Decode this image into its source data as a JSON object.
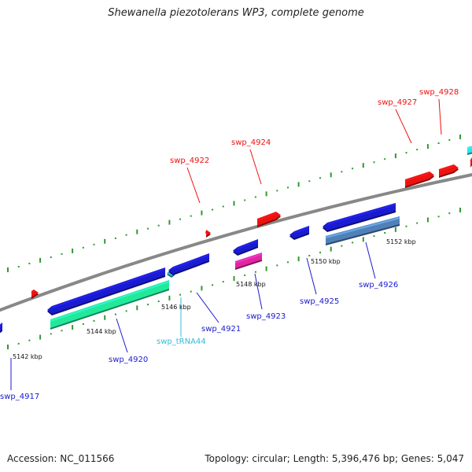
{
  "header": {
    "title": "Shewanella piezotolerans WP3, complete genome"
  },
  "footer": {
    "accession": "Accession: NC_011566",
    "summary": "Topology: circular; Length: 5,396,476 bp; Genes: 5,047"
  },
  "colors": {
    "forward": "#ee1111",
    "reverse": "#1a1ad0",
    "rrna": "#22e89a",
    "trna": "#33bbdd",
    "misc_pink": "#e0259f",
    "misc_steel": "#4f80b8",
    "cyan": "#22e6ee",
    "backbone": "#888888",
    "tick": "#2f9a2f"
  },
  "kbp_labels": [
    "5142 kbp",
    "5144 kbp",
    "5146 kbp",
    "5148 kbp",
    "5150 kbp",
    "5152 kbp"
  ],
  "genes": [
    {
      "id": "swp_4917",
      "label": "swp_4917",
      "strand": "reverse"
    },
    {
      "id": "swp_4920",
      "label": "swp_4920",
      "strand": "reverse"
    },
    {
      "id": "swp_tRNA44",
      "label": "swp_tRNA44",
      "strand": "trna"
    },
    {
      "id": "swp_4921",
      "label": "swp_4921",
      "strand": "reverse"
    },
    {
      "id": "swp_4922",
      "label": "swp_4922",
      "strand": "forward"
    },
    {
      "id": "swp_4923",
      "label": "swp_4923",
      "strand": "reverse"
    },
    {
      "id": "swp_4924",
      "label": "swp_4924",
      "strand": "forward"
    },
    {
      "id": "swp_4925",
      "label": "swp_4925",
      "strand": "reverse"
    },
    {
      "id": "swp_4926",
      "label": "swp_4926",
      "strand": "reverse"
    },
    {
      "id": "swp_4927",
      "label": "swp_4927",
      "strand": "forward"
    },
    {
      "id": "swp_4928",
      "label": "swp_4928",
      "strand": "forward"
    }
  ]
}
